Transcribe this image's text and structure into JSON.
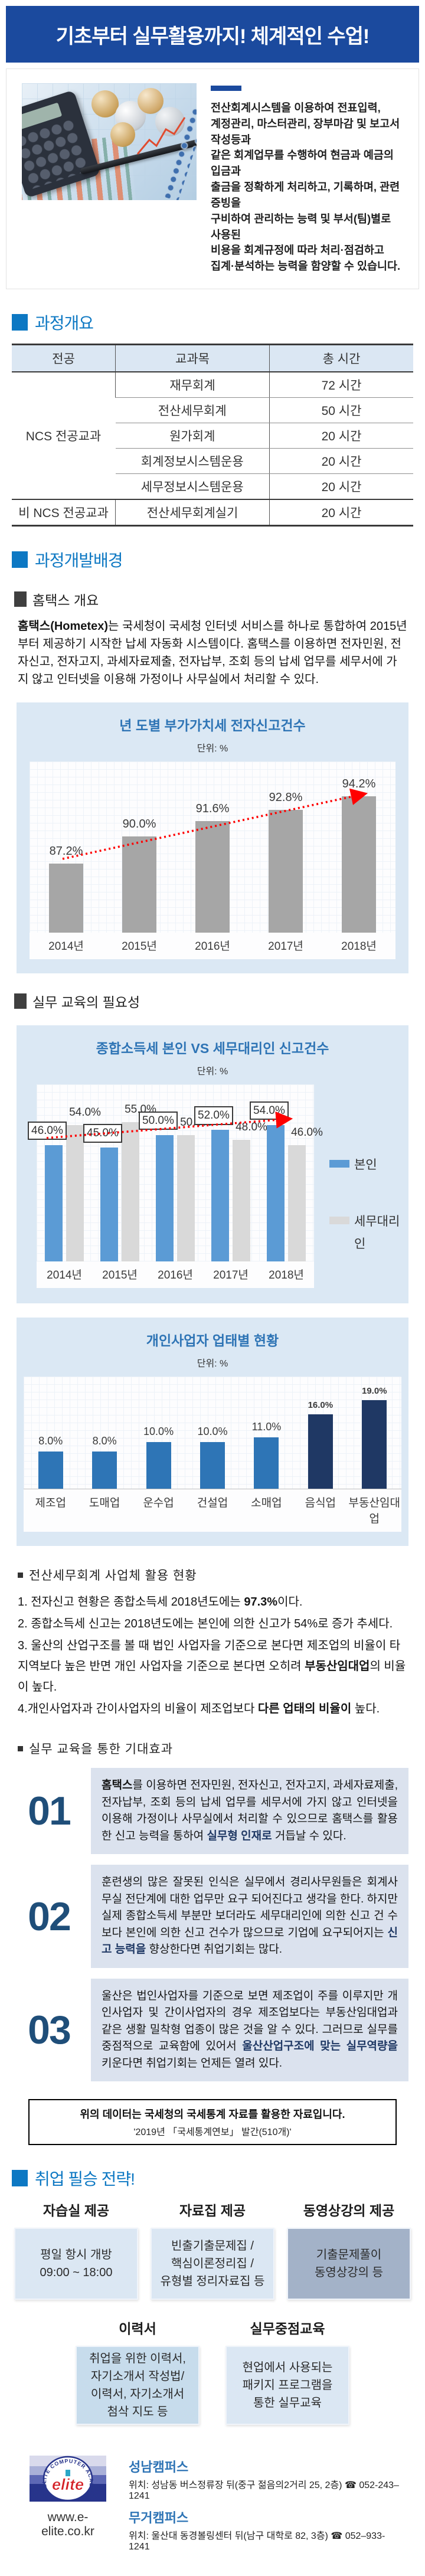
{
  "banner": {
    "title": "기초부터 실무활용까지! 체계적인 수업!"
  },
  "intro": {
    "paragraph": "전산회계시스템을 이용하여 전표입력,\n계정관리, 마스터관리, 장부마감 및 보고서 작성등과\n같은 회계업무를 수행하여 현금과 예금의 입금과\n출금을 정확하게 처리하고, 기록하며, 관련증빙을\n구비하여 관리하는 능력 및 부서(팀)별로 사용된\n비용을 회계규정에 따라 처리·점검하고\n집계·분석하는 능력을 함양할 수 있습니다."
  },
  "sections": {
    "overview": "과정개요",
    "background": "과정개발배경",
    "strategy": "취업 필승 전략!"
  },
  "subsections": {
    "hometax": "홈택스 개요",
    "need": "실무 교육의 필요성"
  },
  "course_table": {
    "headers": [
      "전공",
      "교과목",
      "총 시간"
    ],
    "group1": "NCS 전공교과",
    "group2": "비 NCS 전공교과",
    "rows": [
      [
        "재무회계",
        "72 시간"
      ],
      [
        "전산세무회계",
        "50 시간"
      ],
      [
        "원가회계",
        "20 시간"
      ],
      [
        "회계정보시스템운용",
        "20 시간"
      ],
      [
        "세무정보시스템운용",
        "20 시간"
      ]
    ],
    "row_non_ncs": [
      "전산세무회계실기",
      "20 시간"
    ]
  },
  "hometax_paragraph": [
    {
      "t": "홈택스(Hometex)",
      "b": true
    },
    {
      "t": "는 국세청이 국세청 인터넷 서비스를 하나로 통합하여 2015년부터 제공하기 시작한 납세 자동화 시스템이다. 홈택스를 이용하면 전자민원, 전자신고, 전자고지, 과세자료제출, 전자납부, 조회 등의 납세 업무를 세무서에 가지 않고 인터넷을 이용해 가정이나 사무실에서 처리할 수 있다."
    }
  ],
  "chart_data": [
    {
      "type": "bar",
      "title": "년 도별 부가가치세 전자신고건수",
      "unit_label": "단위: %",
      "categories": [
        "2014년",
        "2015년",
        "2016년",
        "2017년",
        "2018년"
      ],
      "values": [
        87.2,
        90.0,
        91.6,
        92.8,
        94.2
      ],
      "labels": [
        "87.2%",
        "90.0%",
        "91.6%",
        "92.8%",
        "94.2%"
      ],
      "bar_color": "#a6a6a6",
      "trend_arrow_color": "#ff0000",
      "ylim": [
        80,
        96
      ],
      "grid": true,
      "legend": "none"
    },
    {
      "type": "bar",
      "title": "종합소득세 본인 VS 세무대리인 신고건수",
      "unit_label": "단위: %",
      "categories": [
        "2014년",
        "2015년",
        "2016년",
        "2017년",
        "2018년"
      ],
      "series": [
        {
          "name": "본인",
          "color": "#5b9bd5",
          "values": [
            46,
            45,
            50,
            52,
            54
          ],
          "labels": [
            "46.0%",
            "45.0%",
            "50.0%",
            "52.0%",
            "54.0%"
          ],
          "labels_boxed": true
        },
        {
          "name": "세무대리인",
          "color": "#d9d9d9",
          "values": [
            54,
            55,
            50,
            48,
            46
          ],
          "labels": [
            "54.0%",
            "55.0%",
            "50.0%",
            "48.0%",
            "46.0%"
          ],
          "labels_boxed": false
        }
      ],
      "trend_arrow_color": "#ff0000",
      "ylim": [
        0,
        70
      ],
      "grid": true,
      "legend_position": "right"
    },
    {
      "type": "bar",
      "title": "개인사업자 업태별 현황",
      "unit_label": "단위: %",
      "categories": [
        "제조업",
        "도매업",
        "운수업",
        "건설업",
        "소매업",
        "음식업",
        "부동산임대업"
      ],
      "values": [
        8,
        8,
        10,
        10,
        11,
        16,
        19
      ],
      "labels": [
        "8.0%",
        "8.0%",
        "10.0%",
        "10.0%",
        "11.0%",
        "16.0%",
        "19.0%"
      ],
      "bar_color": "#2e75b6",
      "highlight_color": "#1f3864",
      "highlight_from_index": 5,
      "ylim": [
        0,
        24
      ],
      "grid": true,
      "legend": "none"
    }
  ],
  "usage": {
    "title": "전산세무회계 사업체 활용 현황",
    "items": [
      [
        {
          "t": "1. 전자신고 현황은 종합소득세 2018년도에는 "
        },
        {
          "t": "97.3%",
          "b": true
        },
        {
          "t": "이다."
        }
      ],
      [
        {
          "t": "2. 종합소득세 신고는 2018년도에는 본인에 의한 신고가 54%로 증가 추세다."
        }
      ],
      [
        {
          "t": "3. 울산의 산업구조를 볼 때 법인 사업자을 기준으로 본다면 제조업의 비율이 타 지역보다 높은 반면 개인 사업자을 기준으로 본다면 오히려 "
        },
        {
          "t": "부동산임대업",
          "b": true
        },
        {
          "t": "의 비율이 높다."
        }
      ],
      [
        {
          "t": "4.개인사업자과 간이사업자의 비율이 제조업보다 "
        },
        {
          "t": "다른 업태의 비율이",
          "b": true
        },
        {
          "t": " 높다."
        }
      ]
    ]
  },
  "expectation": {
    "title": "실무 교육을 통한 기대효과",
    "items": [
      {
        "num": "01",
        "segments": [
          {
            "t": "홈택스",
            "b": true
          },
          {
            "t": "를 이용하면 전자민원, 전자신고, 전자고지, 과세자료제출, 전자납부, 조회 등의 납세 업무를 세무서에 가지 않고 인터넷을 이용해 가정이나 사무실에서 처리할 수 있으므로 홈택스를 활용한 신고 능력을 통하여 "
          },
          {
            "t": "실무형 인재로",
            "b": true,
            "c": true
          },
          {
            "t": " 거듭날 수 있다."
          }
        ]
      },
      {
        "num": "02",
        "segments": [
          {
            "t": "훈련생의 많은 잘못된 인식은 실무에서 경리사무원들은 회계사무실 전단계에 대한 업무만 요구 되어진다고 생각을 한다. 하지만 실제 종합소득세 부분만 보더라도 세무대리인에 의한 신고 건 수 보다 본인에 의한 신고 건수가 많으므로 기업에 요구되어지는 "
          },
          {
            "t": "신고 능력을",
            "b": true,
            "c": true
          },
          {
            "t": " 향상한다면 취업기회는 많다."
          }
        ]
      },
      {
        "num": "03",
        "segments": [
          {
            "t": "울산은 법인사업자를 기준으로 보면 제조업이 주를 이루지만 개인사업자 및 간이사업자의 경우 제조업보다는 부동산임대업과 같은 생활 밀착형 업종이 많은 것을 알 수 있다. 그러므로 실무를 중점적으로 교육함에 있어서 "
          },
          {
            "t": "울산산업구조에 맞는 실무역량을",
            "b": true,
            "c": true
          },
          {
            "t": " 키운다면 취업기회는 언제든 열려 있다."
          }
        ]
      }
    ]
  },
  "note": {
    "line1": "위의 데이터는 국세청의 국세통계 자료를 활용한 자료입니다.",
    "line2": "'2019년 「국세통계연보」 발간(510개)'"
  },
  "strategy": {
    "cards1": [
      {
        "header": "자습실 제공",
        "body": "평일 항시 개방\n09:00 ~ 18:00"
      },
      {
        "header": "자료집 제공",
        "body": "빈출기출문제집 /\n핵심이론정리집 /\n유형별 정리자료집 등"
      },
      {
        "header": "동영상강의 제공",
        "body": "기출문제풀이\n동영상강의 등"
      }
    ],
    "cards2": [
      {
        "header": "이력서",
        "body": "취업을 위한 이력서,\n자기소개서 작성법/\n이력서, 자기소개서\n첨삭 지도 등"
      },
      {
        "header": "실무중점교육",
        "body": "현업에서 사용되는\n패키지 프로그램을\n통한 실무교육"
      }
    ]
  },
  "footer": {
    "url": "www.e-elite.co.kr",
    "logo": {
      "brand": "elite",
      "arc_text": "ELITE COMPUTER ACADEMY"
    },
    "campuses": [
      {
        "name": "성남캠퍼스",
        "info": "위치: 성남동 버스정류장 뒤(중구 젊음의2거리 25, 2층) ☎ 052-243–1241"
      },
      {
        "name": "무거캠퍼스",
        "info": "위치: 울산대 동경볼링센터 뒤(남구 대학로 82, 3층) ☎ 052–933-1241"
      }
    ]
  }
}
